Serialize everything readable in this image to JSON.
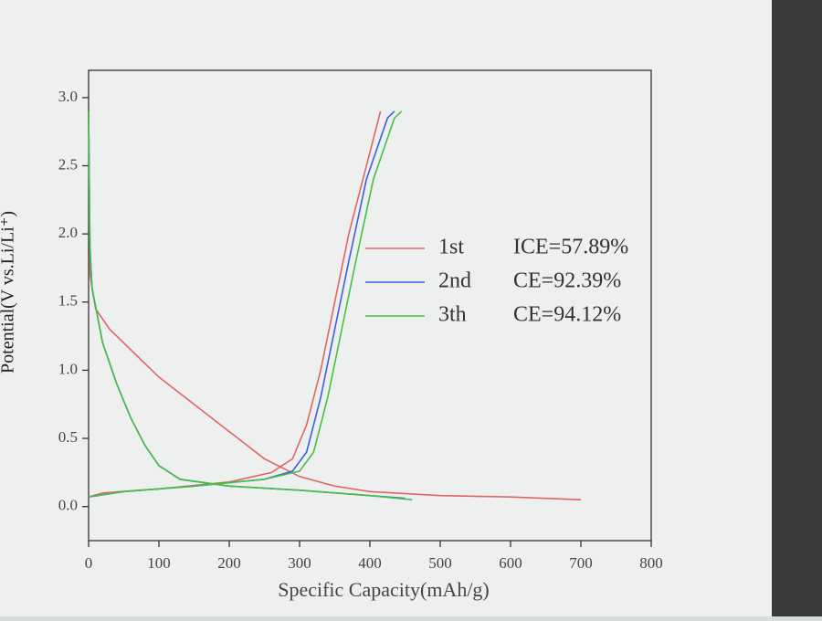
{
  "chart_data": {
    "type": "line",
    "x_label": "Specific Capacity(mAh/g)",
    "y_label": "Potential(V vs.Li/Li⁺)",
    "xlim": [
      0,
      800
    ],
    "xticks": [
      0,
      100,
      200,
      300,
      400,
      500,
      600,
      700,
      800
    ],
    "ylim": [
      -0.25,
      3.2
    ],
    "yticks": [
      {
        "value": 0,
        "label": "0.0"
      },
      0.5,
      {
        "value": 1,
        "label": "1.0"
      },
      1.5,
      {
        "value": 2,
        "label": "2.0"
      },
      2.5,
      {
        "value": 3,
        "label": "3.0"
      }
    ],
    "grid": false,
    "legend": "right",
    "series": [
      {
        "name": "1st",
        "efficiency": "ICE=57.89%",
        "color": "#e06666",
        "x": [
          0,
          2,
          10,
          30,
          60,
          100,
          150,
          200,
          250,
          300,
          350,
          400,
          500,
          600,
          700,
          null,
          0,
          20,
          100,
          200,
          260,
          290,
          310,
          330,
          350,
          370,
          395,
          415
        ],
        "values": [
          2.9,
          1.7,
          1.45,
          1.3,
          1.15,
          0.95,
          0.75,
          0.55,
          0.35,
          0.22,
          0.15,
          0.11,
          0.08,
          0.07,
          0.05,
          null,
          0.07,
          0.1,
          0.13,
          0.18,
          0.25,
          0.35,
          0.6,
          1.0,
          1.5,
          2.0,
          2.5,
          2.9
        ]
      },
      {
        "name": "2nd",
        "efficiency": "CE=92.39%",
        "color": "#3a5fe0",
        "x": [
          0,
          2,
          5,
          20,
          40,
          60,
          80,
          100,
          130,
          200,
          300,
          400,
          450,
          null,
          0,
          50,
          150,
          250,
          290,
          310,
          330,
          350,
          370,
          395,
          425,
          435
        ],
        "values": [
          2.9,
          1.9,
          1.6,
          1.2,
          0.9,
          0.65,
          0.45,
          0.3,
          0.2,
          0.15,
          0.12,
          0.08,
          0.06,
          null,
          0.07,
          0.11,
          0.15,
          0.2,
          0.26,
          0.4,
          0.8,
          1.3,
          1.8,
          2.4,
          2.85,
          2.9
        ]
      },
      {
        "name": "3th",
        "efficiency": "CE=94.12%",
        "color": "#44c044",
        "x": [
          0,
          2,
          5,
          20,
          40,
          60,
          80,
          100,
          130,
          200,
          300,
          400,
          460,
          null,
          0,
          50,
          150,
          250,
          300,
          320,
          340,
          360,
          380,
          405,
          435,
          445
        ],
        "values": [
          2.9,
          1.9,
          1.6,
          1.2,
          0.9,
          0.65,
          0.45,
          0.3,
          0.2,
          0.15,
          0.12,
          0.08,
          0.05,
          null,
          0.07,
          0.11,
          0.15,
          0.2,
          0.26,
          0.4,
          0.8,
          1.3,
          1.8,
          2.4,
          2.85,
          2.9
        ]
      }
    ]
  }
}
